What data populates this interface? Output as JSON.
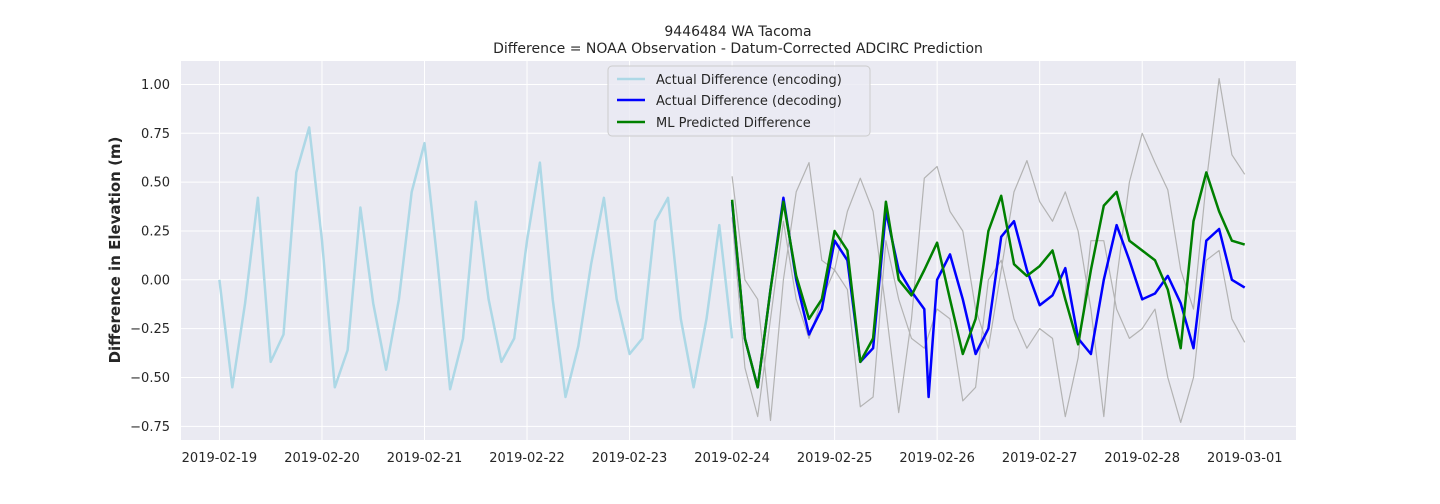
{
  "chart_data": {
    "type": "line",
    "title": "9446484 WA Tacoma",
    "subtitle": "Difference = NOAA Observation - Datum-Corrected ADCIRC Prediction",
    "xlabel": "",
    "ylabel": "Difference in Elevation (m)",
    "xlim": [
      "2019-02-18T15:00",
      "2019-03-01T12:00"
    ],
    "ylim": [
      -0.82,
      1.12
    ],
    "x_ticks": [
      "2019-02-19",
      "2019-02-20",
      "2019-02-21",
      "2019-02-22",
      "2019-02-23",
      "2019-02-24",
      "2019-02-25",
      "2019-02-26",
      "2019-02-27",
      "2019-02-28",
      "2019-03-01"
    ],
    "y_ticks": [
      1.0,
      0.75,
      0.5,
      0.25,
      0.0,
      -0.25,
      -0.5,
      -0.75
    ],
    "y_tick_labels": [
      "1.00",
      "0.75",
      "0.50",
      "0.25",
      "0.00",
      "−0.25",
      "−0.50",
      "−0.75"
    ],
    "grid": true,
    "legend_position": "top-center",
    "series": [
      {
        "name": "Actual Difference (encoding)",
        "color": "#add8e6",
        "x": [
          "2019-02-19T00:00",
          "2019-02-19T03:00",
          "2019-02-19T06:00",
          "2019-02-19T09:00",
          "2019-02-19T12:00",
          "2019-02-19T15:00",
          "2019-02-19T18:00",
          "2019-02-19T21:00",
          "2019-02-20T00:00",
          "2019-02-20T03:00",
          "2019-02-20T06:00",
          "2019-02-20T09:00",
          "2019-02-20T12:00",
          "2019-02-20T15:00",
          "2019-02-20T18:00",
          "2019-02-20T21:00",
          "2019-02-21T00:00",
          "2019-02-21T03:00",
          "2019-02-21T06:00",
          "2019-02-21T09:00",
          "2019-02-21T12:00",
          "2019-02-21T15:00",
          "2019-02-21T18:00",
          "2019-02-21T21:00",
          "2019-02-22T00:00",
          "2019-02-22T03:00",
          "2019-02-22T06:00",
          "2019-02-22T09:00",
          "2019-02-22T12:00",
          "2019-02-22T15:00",
          "2019-02-22T18:00",
          "2019-02-22T21:00",
          "2019-02-23T00:00",
          "2019-02-23T03:00",
          "2019-02-23T06:00",
          "2019-02-23T09:00",
          "2019-02-23T12:00",
          "2019-02-23T15:00",
          "2019-02-23T18:00",
          "2019-02-23T21:00",
          "2019-02-24T00:00"
        ],
        "values": [
          0.0,
          -0.55,
          -0.12,
          0.42,
          -0.42,
          -0.28,
          0.55,
          0.78,
          0.2,
          -0.55,
          -0.36,
          0.37,
          -0.12,
          -0.46,
          -0.1,
          0.45,
          0.7,
          0.1,
          -0.56,
          -0.3,
          0.4,
          -0.1,
          -0.42,
          -0.3,
          0.2,
          0.6,
          -0.1,
          -0.6,
          -0.34,
          0.08,
          0.42,
          -0.1,
          -0.38,
          -0.3,
          0.3,
          0.42,
          -0.2,
          -0.55,
          -0.2,
          0.28,
          -0.3
        ]
      },
      {
        "name": "Actual Difference (decoding)",
        "color": "#0000ff",
        "x": [
          "2019-02-24T00:00",
          "2019-02-24T03:00",
          "2019-02-24T06:00",
          "2019-02-24T09:00",
          "2019-02-24T12:00",
          "2019-02-24T15:00",
          "2019-02-24T18:00",
          "2019-02-24T21:00",
          "2019-02-25T00:00",
          "2019-02-25T03:00",
          "2019-02-25T06:00",
          "2019-02-25T09:00",
          "2019-02-25T12:00",
          "2019-02-25T15:00",
          "2019-02-25T18:00",
          "2019-02-25T21:00",
          "2019-02-25T22:00",
          "2019-02-26T00:00",
          "2019-02-26T03:00",
          "2019-02-26T06:00",
          "2019-02-26T09:00",
          "2019-02-26T12:00",
          "2019-02-26T15:00",
          "2019-02-26T18:00",
          "2019-02-26T21:00",
          "2019-02-27T00:00",
          "2019-02-27T03:00",
          "2019-02-27T06:00",
          "2019-02-27T09:00",
          "2019-02-27T12:00",
          "2019-02-27T15:00",
          "2019-02-27T18:00",
          "2019-02-27T21:00",
          "2019-02-28T00:00",
          "2019-02-28T03:00",
          "2019-02-28T06:00",
          "2019-02-28T09:00",
          "2019-02-28T12:00",
          "2019-02-28T15:00",
          "2019-02-28T18:00",
          "2019-02-28T21:00",
          "2019-03-01T00:00"
        ],
        "values": [
          0.4,
          -0.3,
          -0.55,
          -0.05,
          0.42,
          0.0,
          -0.28,
          -0.15,
          0.2,
          0.1,
          -0.42,
          -0.35,
          0.35,
          0.05,
          -0.06,
          -0.15,
          -0.6,
          0.0,
          0.13,
          -0.1,
          -0.38,
          -0.25,
          0.22,
          0.3,
          0.05,
          -0.13,
          -0.08,
          0.06,
          -0.3,
          -0.38,
          0.0,
          0.28,
          0.1,
          -0.1,
          -0.07,
          0.02,
          -0.12,
          -0.35,
          0.2,
          0.26,
          0.0,
          -0.04
        ]
      },
      {
        "name": "ML Predicted Difference",
        "color": "#008000",
        "x": [
          "2019-02-24T00:00",
          "2019-02-24T03:00",
          "2019-02-24T06:00",
          "2019-02-24T09:00",
          "2019-02-24T12:00",
          "2019-02-24T15:00",
          "2019-02-24T18:00",
          "2019-02-24T21:00",
          "2019-02-25T00:00",
          "2019-02-25T03:00",
          "2019-02-25T06:00",
          "2019-02-25T09:00",
          "2019-02-25T12:00",
          "2019-02-25T15:00",
          "2019-02-25T18:00",
          "2019-02-25T21:00",
          "2019-02-26T00:00",
          "2019-02-26T03:00",
          "2019-02-26T06:00",
          "2019-02-26T09:00",
          "2019-02-26T12:00",
          "2019-02-26T15:00",
          "2019-02-26T18:00",
          "2019-02-26T21:00",
          "2019-02-27T00:00",
          "2019-02-27T03:00",
          "2019-02-27T06:00",
          "2019-02-27T09:00",
          "2019-02-27T12:00",
          "2019-02-27T15:00",
          "2019-02-27T18:00",
          "2019-02-27T21:00",
          "2019-02-28T00:00",
          "2019-02-28T03:00",
          "2019-02-28T06:00",
          "2019-02-28T09:00",
          "2019-02-28T12:00",
          "2019-02-28T15:00",
          "2019-02-28T18:00",
          "2019-02-28T21:00",
          "2019-03-01T00:00"
        ],
        "values": [
          0.41,
          -0.3,
          -0.55,
          -0.05,
          0.4,
          0.02,
          -0.2,
          -0.1,
          0.25,
          0.15,
          -0.42,
          -0.3,
          0.4,
          0.0,
          -0.08,
          0.05,
          0.19,
          -0.1,
          -0.38,
          -0.2,
          0.25,
          0.43,
          0.08,
          0.02,
          0.07,
          0.15,
          -0.1,
          -0.33,
          0.05,
          0.38,
          0.45,
          0.2,
          0.15,
          0.1,
          -0.05,
          -0.35,
          0.3,
          0.55,
          0.35,
          0.2,
          0.18
        ]
      },
      {
        "name": "",
        "color": "#b3b3b3",
        "x": [
          "2019-02-24T00:00",
          "2019-02-24T03:00",
          "2019-02-24T06:00",
          "2019-02-24T09:00",
          "2019-02-24T12:00",
          "2019-02-24T15:00",
          "2019-02-24T18:00",
          "2019-02-24T21:00",
          "2019-02-25T00:00",
          "2019-02-25T03:00",
          "2019-02-25T06:00",
          "2019-02-25T09:00",
          "2019-02-25T12:00",
          "2019-02-25T15:00",
          "2019-02-25T18:00",
          "2019-02-25T21:00",
          "2019-02-26T00:00",
          "2019-02-26T03:00",
          "2019-02-26T06:00",
          "2019-02-26T09:00",
          "2019-02-26T12:00",
          "2019-02-26T15:00",
          "2019-02-26T18:00",
          "2019-02-26T21:00",
          "2019-02-27T00:00",
          "2019-02-27T03:00",
          "2019-02-27T06:00",
          "2019-02-27T09:00",
          "2019-02-27T12:00",
          "2019-02-27T15:00",
          "2019-02-27T18:00",
          "2019-02-27T21:00",
          "2019-02-28T00:00",
          "2019-02-28T03:00",
          "2019-02-28T06:00",
          "2019-02-28T09:00",
          "2019-02-28T12:00",
          "2019-02-28T15:00",
          "2019-02-28T18:00",
          "2019-02-28T21:00",
          "2019-03-01T00:00"
        ],
        "values": [
          0.53,
          0.0,
          -0.1,
          -0.72,
          0.0,
          0.45,
          0.6,
          0.1,
          0.05,
          0.35,
          0.52,
          0.35,
          -0.15,
          -0.68,
          -0.2,
          0.52,
          0.58,
          0.35,
          0.25,
          -0.15,
          -0.35,
          0.05,
          0.45,
          0.61,
          0.4,
          0.3,
          0.45,
          0.25,
          -0.15,
          -0.7,
          0.0,
          0.5,
          0.75,
          0.6,
          0.46,
          0.05,
          -0.15,
          0.5,
          1.03,
          0.64,
          0.54
        ]
      },
      {
        "name": "",
        "color": "#b3b3b3",
        "x": [
          "2019-02-24T00:00",
          "2019-02-24T03:00",
          "2019-02-24T06:00",
          "2019-02-24T09:00",
          "2019-02-24T12:00",
          "2019-02-24T15:00",
          "2019-02-24T18:00",
          "2019-02-24T21:00",
          "2019-02-25T00:00",
          "2019-02-25T03:00",
          "2019-02-25T06:00",
          "2019-02-25T09:00",
          "2019-02-25T12:00",
          "2019-02-25T15:00",
          "2019-02-25T18:00",
          "2019-02-25T21:00",
          "2019-02-26T00:00",
          "2019-02-26T03:00",
          "2019-02-26T06:00",
          "2019-02-26T09:00",
          "2019-02-26T12:00",
          "2019-02-26T15:00",
          "2019-02-26T18:00",
          "2019-02-26T21:00",
          "2019-02-27T00:00",
          "2019-02-27T03:00",
          "2019-02-27T06:00",
          "2019-02-27T09:00",
          "2019-02-27T12:00",
          "2019-02-27T15:00",
          "2019-02-27T18:00",
          "2019-02-27T21:00",
          "2019-02-28T00:00",
          "2019-02-28T03:00",
          "2019-02-28T06:00",
          "2019-02-28T09:00",
          "2019-02-28T12:00",
          "2019-02-28T15:00",
          "2019-02-28T18:00",
          "2019-02-28T21:00",
          "2019-03-01T00:00"
        ],
        "values": [
          0.32,
          -0.45,
          -0.7,
          -0.2,
          0.3,
          -0.1,
          -0.3,
          -0.1,
          0.05,
          -0.05,
          -0.65,
          -0.6,
          0.2,
          -0.1,
          -0.3,
          -0.35,
          -0.15,
          -0.2,
          -0.62,
          -0.55,
          0.0,
          0.1,
          -0.2,
          -0.35,
          -0.25,
          -0.3,
          -0.7,
          -0.4,
          0.2,
          0.2,
          -0.15,
          -0.3,
          -0.25,
          -0.15,
          -0.5,
          -0.73,
          -0.5,
          0.1,
          0.15,
          -0.2,
          -0.32
        ]
      }
    ]
  }
}
